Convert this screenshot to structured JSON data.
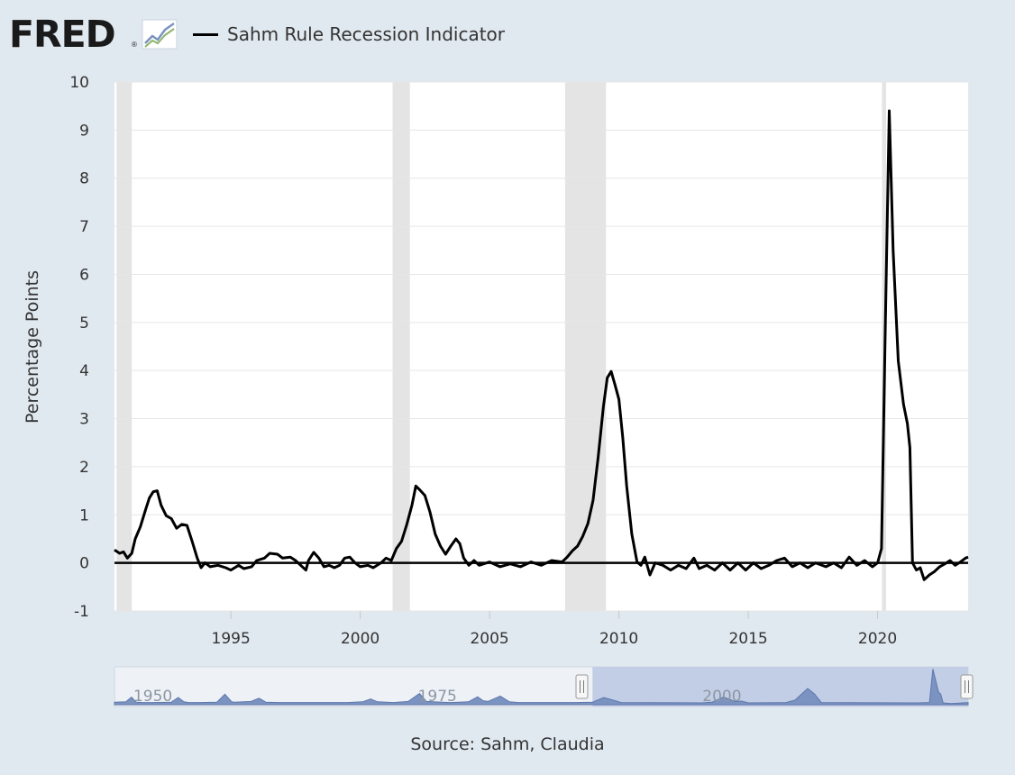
{
  "header": {
    "logo_text": "FRED",
    "logo_reg": "®",
    "logo_icon": "line-chart-icon",
    "legend_label": "Sahm Rule Recession Indicator"
  },
  "source_text": "Source: Sahm, Claudia",
  "colors": {
    "background": "#e1e9f0",
    "plot_bg": "#ffffff",
    "line": "#000000",
    "recession_band": "#e4e4e4",
    "navigator_fill": "#7b93c0",
    "navigator_selection": "#c2cde6"
  },
  "navigator": {
    "labels": [
      {
        "year": 1950,
        "text": "1950"
      },
      {
        "year": 1975,
        "text": "1975"
      },
      {
        "year": 2000,
        "text": "2000"
      }
    ],
    "range_start": 1990.5,
    "range_end": 2023.5,
    "series": [
      [
        1949.5,
        0.3
      ],
      [
        1950.0,
        1.6
      ],
      [
        1950.4,
        0.2
      ],
      [
        1951,
        0.1
      ],
      [
        1952,
        0.1
      ],
      [
        1953.5,
        0.2
      ],
      [
        1954.1,
        1.5
      ],
      [
        1954.6,
        0.3
      ],
      [
        1955,
        0.1
      ],
      [
        1956,
        0.1
      ],
      [
        1957.5,
        0.2
      ],
      [
        1958.2,
        2.4
      ],
      [
        1958.8,
        0.3
      ],
      [
        1959,
        0.2
      ],
      [
        1960.5,
        0.4
      ],
      [
        1961.2,
        1.3
      ],
      [
        1961.8,
        0.2
      ],
      [
        1963,
        0.1
      ],
      [
        1966,
        0.1
      ],
      [
        1969,
        0.1
      ],
      [
        1970.3,
        0.3
      ],
      [
        1971.0,
        1.1
      ],
      [
        1971.6,
        0.3
      ],
      [
        1973,
        0.1
      ],
      [
        1974.3,
        0.4
      ],
      [
        1975.3,
        2.6
      ],
      [
        1975.9,
        0.4
      ],
      [
        1976.5,
        0.3
      ],
      [
        1978,
        0.1
      ],
      [
        1979.6,
        0.3
      ],
      [
        1980.4,
        1.7
      ],
      [
        1980.9,
        0.6
      ],
      [
        1981.3,
        0.4
      ],
      [
        1982.4,
        1.9
      ],
      [
        1983.2,
        0.3
      ],
      [
        1984,
        0.1
      ],
      [
        1989,
        0.1
      ],
      [
        1990.5,
        0.2
      ],
      [
        1991.5,
        1.5
      ],
      [
        1992.4,
        0.7
      ],
      [
        1993,
        0.1
      ],
      [
        2000,
        0.0
      ],
      [
        2001.0,
        0.2
      ],
      [
        2002.0,
        1.6
      ],
      [
        2003.0,
        0.4
      ],
      [
        2003.6,
        0.5
      ],
      [
        2004.2,
        0.0
      ],
      [
        2007.5,
        0.1
      ],
      [
        2008.3,
        0.8
      ],
      [
        2009.4,
        4.0
      ],
      [
        2010.0,
        2.5
      ],
      [
        2010.6,
        0.1
      ],
      [
        2019,
        0.0
      ],
      [
        2020.1,
        0.1
      ],
      [
        2020.4,
        9.4
      ],
      [
        2020.9,
        3.0
      ],
      [
        2021.1,
        2.4
      ],
      [
        2021.3,
        0.0
      ],
      [
        2022,
        -0.2
      ],
      [
        2023,
        0.0
      ],
      [
        2023.5,
        0.1
      ]
    ]
  },
  "chart_data": {
    "type": "line",
    "title": "",
    "series": [
      {
        "name": "Sahm Rule Recession Indicator"
      }
    ],
    "ylabel": "Percentage Points",
    "xlabel": "",
    "xlim": [
      1990.5,
      2023.5
    ],
    "ylim": [
      -1,
      10
    ],
    "x_ticks": [
      1995,
      2000,
      2005,
      2010,
      2015,
      2020
    ],
    "y_ticks": [
      -1,
      0,
      1,
      2,
      3,
      4,
      5,
      6,
      7,
      8,
      9,
      10
    ],
    "grid": "horizontal",
    "recession_bands": [
      [
        1990.58,
        1991.17
      ],
      [
        2001.25,
        2001.92
      ],
      [
        2007.92,
        2009.5
      ],
      [
        2020.17,
        2020.33
      ]
    ],
    "points": [
      [
        1990.5,
        0.27
      ],
      [
        1990.7,
        0.2
      ],
      [
        1990.85,
        0.23
      ],
      [
        1991.0,
        0.1
      ],
      [
        1991.17,
        0.2
      ],
      [
        1991.3,
        0.5
      ],
      [
        1991.5,
        0.75
      ],
      [
        1991.7,
        1.1
      ],
      [
        1991.85,
        1.35
      ],
      [
        1992.0,
        1.48
      ],
      [
        1992.15,
        1.5
      ],
      [
        1992.3,
        1.2
      ],
      [
        1992.5,
        0.98
      ],
      [
        1992.7,
        0.92
      ],
      [
        1992.9,
        0.72
      ],
      [
        1993.1,
        0.8
      ],
      [
        1993.3,
        0.78
      ],
      [
        1993.5,
        0.45
      ],
      [
        1993.7,
        0.1
      ],
      [
        1993.85,
        -0.1
      ],
      [
        1994.0,
        0.0
      ],
      [
        1994.2,
        -0.08
      ],
      [
        1994.5,
        -0.05
      ],
      [
        1994.8,
        -0.1
      ],
      [
        1995.0,
        -0.15
      ],
      [
        1995.3,
        -0.05
      ],
      [
        1995.5,
        -0.12
      ],
      [
        1995.8,
        -0.08
      ],
      [
        1996.0,
        0.05
      ],
      [
        1996.3,
        0.1
      ],
      [
        1996.5,
        0.2
      ],
      [
        1996.8,
        0.18
      ],
      [
        1997.0,
        0.1
      ],
      [
        1997.3,
        0.12
      ],
      [
        1997.5,
        0.05
      ],
      [
        1997.7,
        -0.05
      ],
      [
        1997.9,
        -0.15
      ],
      [
        1998.0,
        0.05
      ],
      [
        1998.2,
        0.22
      ],
      [
        1998.4,
        0.1
      ],
      [
        1998.6,
        -0.08
      ],
      [
        1998.8,
        -0.05
      ],
      [
        1999.0,
        -0.1
      ],
      [
        1999.2,
        -0.05
      ],
      [
        1999.4,
        0.1
      ],
      [
        1999.6,
        0.12
      ],
      [
        1999.8,
        0.0
      ],
      [
        2000.0,
        -0.08
      ],
      [
        2000.3,
        -0.05
      ],
      [
        2000.5,
        -0.1
      ],
      [
        2000.8,
        0.0
      ],
      [
        2001.0,
        0.1
      ],
      [
        2001.2,
        0.05
      ],
      [
        2001.4,
        0.3
      ],
      [
        2001.6,
        0.45
      ],
      [
        2001.8,
        0.8
      ],
      [
        2002.0,
        1.2
      ],
      [
        2002.15,
        1.6
      ],
      [
        2002.3,
        1.52
      ],
      [
        2002.5,
        1.4
      ],
      [
        2002.7,
        1.05
      ],
      [
        2002.9,
        0.6
      ],
      [
        2003.1,
        0.35
      ],
      [
        2003.3,
        0.18
      ],
      [
        2003.5,
        0.35
      ],
      [
        2003.7,
        0.5
      ],
      [
        2003.85,
        0.4
      ],
      [
        2004.0,
        0.1
      ],
      [
        2004.2,
        -0.05
      ],
      [
        2004.4,
        0.05
      ],
      [
        2004.6,
        -0.05
      ],
      [
        2005.0,
        0.02
      ],
      [
        2005.4,
        -0.08
      ],
      [
        2005.8,
        -0.02
      ],
      [
        2006.2,
        -0.08
      ],
      [
        2006.6,
        0.02
      ],
      [
        2007.0,
        -0.05
      ],
      [
        2007.4,
        0.05
      ],
      [
        2007.8,
        0.02
      ],
      [
        2008.0,
        0.12
      ],
      [
        2008.2,
        0.25
      ],
      [
        2008.4,
        0.35
      ],
      [
        2008.6,
        0.55
      ],
      [
        2008.8,
        0.82
      ],
      [
        2009.0,
        1.3
      ],
      [
        2009.2,
        2.2
      ],
      [
        2009.4,
        3.25
      ],
      [
        2009.55,
        3.85
      ],
      [
        2009.7,
        3.98
      ],
      [
        2009.85,
        3.7
      ],
      [
        2010.0,
        3.4
      ],
      [
        2010.15,
        2.6
      ],
      [
        2010.3,
        1.6
      ],
      [
        2010.5,
        0.6
      ],
      [
        2010.7,
        0.02
      ],
      [
        2010.85,
        -0.05
      ],
      [
        2011.0,
        0.12
      ],
      [
        2011.2,
        -0.25
      ],
      [
        2011.4,
        0.0
      ],
      [
        2011.7,
        -0.05
      ],
      [
        2012.0,
        -0.15
      ],
      [
        2012.3,
        -0.05
      ],
      [
        2012.6,
        -0.12
      ],
      [
        2012.9,
        0.1
      ],
      [
        2013.1,
        -0.12
      ],
      [
        2013.4,
        -0.05
      ],
      [
        2013.7,
        -0.15
      ],
      [
        2014.0,
        0.0
      ],
      [
        2014.3,
        -0.15
      ],
      [
        2014.6,
        0.0
      ],
      [
        2014.9,
        -0.15
      ],
      [
        2015.2,
        0.0
      ],
      [
        2015.5,
        -0.12
      ],
      [
        2015.8,
        -0.05
      ],
      [
        2016.1,
        0.05
      ],
      [
        2016.4,
        0.1
      ],
      [
        2016.7,
        -0.08
      ],
      [
        2017.0,
        0.0
      ],
      [
        2017.3,
        -0.1
      ],
      [
        2017.6,
        0.0
      ],
      [
        2018.0,
        -0.08
      ],
      [
        2018.3,
        0.0
      ],
      [
        2018.6,
        -0.1
      ],
      [
        2018.9,
        0.12
      ],
      [
        2019.2,
        -0.05
      ],
      [
        2019.5,
        0.05
      ],
      [
        2019.8,
        -0.08
      ],
      [
        2020.0,
        0.0
      ],
      [
        2020.15,
        0.3
      ],
      [
        2020.3,
        5.0
      ],
      [
        2020.45,
        9.4
      ],
      [
        2020.6,
        6.5
      ],
      [
        2020.8,
        4.2
      ],
      [
        2021.0,
        3.3
      ],
      [
        2021.15,
        2.9
      ],
      [
        2021.25,
        2.4
      ],
      [
        2021.35,
        0.0
      ],
      [
        2021.5,
        -0.15
      ],
      [
        2021.65,
        -0.1
      ],
      [
        2021.8,
        -0.35
      ],
      [
        2022.0,
        -0.25
      ],
      [
        2022.2,
        -0.18
      ],
      [
        2022.4,
        -0.08
      ],
      [
        2022.6,
        -0.02
      ],
      [
        2022.8,
        0.05
      ],
      [
        2023.0,
        -0.05
      ],
      [
        2023.2,
        0.02
      ],
      [
        2023.4,
        0.1
      ],
      [
        2023.5,
        0.12
      ]
    ]
  }
}
